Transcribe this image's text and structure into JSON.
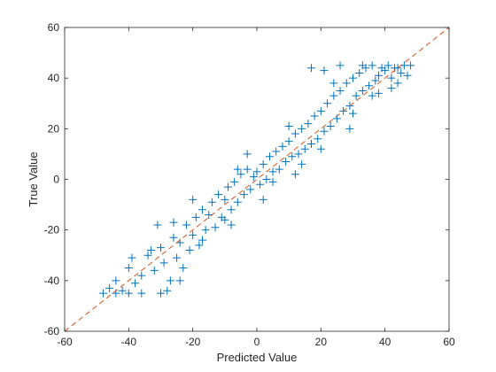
{
  "colors": {
    "marker": "#0072BD",
    "reference_line": "#D95319",
    "axis": "#262626"
  },
  "chart_data": {
    "type": "scatter",
    "title": "",
    "xlabel": "Predicted Value",
    "ylabel": "True Value",
    "xlim": [
      -60,
      60
    ],
    "ylim": [
      -60,
      60
    ],
    "xticks": [
      -60,
      -40,
      -20,
      0,
      20,
      40,
      60
    ],
    "yticks": [
      -60,
      -40,
      -20,
      0,
      20,
      40,
      60
    ],
    "xtick_labels": [
      "-60",
      "-40",
      "-20",
      "0",
      "20",
      "40",
      "60"
    ],
    "ytick_labels": [
      "-60",
      "-40",
      "-20",
      "0",
      "20",
      "40",
      "60"
    ],
    "grid": false,
    "marker": "+",
    "reference_line": {
      "style": "dashed",
      "x": [
        -60,
        60
      ],
      "y": [
        -60,
        60
      ]
    },
    "series": [
      {
        "name": "",
        "points": [
          [
            -48,
            -45
          ],
          [
            -46,
            -43
          ],
          [
            -44,
            -40
          ],
          [
            -42,
            -44
          ],
          [
            -40,
            -35
          ],
          [
            -38,
            -41
          ],
          [
            -36,
            -38
          ],
          [
            -34,
            -30
          ],
          [
            -32,
            -36
          ],
          [
            -30,
            -27
          ],
          [
            -29,
            -33
          ],
          [
            -28,
            -44
          ],
          [
            -27,
            -40
          ],
          [
            -26,
            -23
          ],
          [
            -25,
            -31
          ],
          [
            -24,
            -25
          ],
          [
            -23,
            -35
          ],
          [
            -22,
            -18
          ],
          [
            -21,
            -28
          ],
          [
            -20,
            -22
          ],
          [
            -19,
            -15
          ],
          [
            -18,
            -26
          ],
          [
            -17,
            -12
          ],
          [
            -16,
            -20
          ],
          [
            -15,
            -14
          ],
          [
            -14,
            -9
          ],
          [
            -13,
            -19
          ],
          [
            -12,
            -6
          ],
          [
            -11,
            -15
          ],
          [
            -10,
            -8
          ],
          [
            -9,
            -3
          ],
          [
            -8,
            -12
          ],
          [
            -7,
            -1
          ],
          [
            -6,
            -9
          ],
          [
            -5,
            2
          ],
          [
            -4,
            -6
          ],
          [
            -3,
            4
          ],
          [
            -2,
            -4
          ],
          [
            -1,
            1
          ],
          [
            0,
            3
          ],
          [
            1,
            -2
          ],
          [
            2,
            6
          ],
          [
            3,
            0
          ],
          [
            4,
            9
          ],
          [
            5,
            3
          ],
          [
            6,
            11
          ],
          [
            7,
            4
          ],
          [
            8,
            13
          ],
          [
            9,
            7
          ],
          [
            10,
            15
          ],
          [
            11,
            9
          ],
          [
            12,
            18
          ],
          [
            13,
            10
          ],
          [
            14,
            20
          ],
          [
            15,
            12
          ],
          [
            16,
            22
          ],
          [
            17,
            14
          ],
          [
            18,
            25
          ],
          [
            19,
            16
          ],
          [
            20,
            27
          ],
          [
            21,
            19
          ],
          [
            22,
            30
          ],
          [
            23,
            21
          ],
          [
            24,
            33
          ],
          [
            25,
            24
          ],
          [
            26,
            35
          ],
          [
            27,
            27
          ],
          [
            28,
            38
          ],
          [
            29,
            29
          ],
          [
            30,
            40
          ],
          [
            31,
            33
          ],
          [
            32,
            42
          ],
          [
            33,
            35
          ],
          [
            34,
            44
          ],
          [
            35,
            37
          ],
          [
            36,
            45
          ],
          [
            37,
            39
          ],
          [
            38,
            41
          ],
          [
            39,
            44
          ],
          [
            40,
            43
          ],
          [
            41,
            45
          ],
          [
            42,
            40
          ],
          [
            43,
            44
          ],
          [
            44,
            38
          ],
          [
            45,
            42
          ],
          [
            46,
            45
          ],
          [
            47,
            41
          ],
          [
            48,
            45
          ],
          [
            -44,
            -45
          ],
          [
            -40,
            -45
          ],
          [
            -36,
            -45
          ],
          [
            -30,
            -45
          ],
          [
            -24,
            -40
          ],
          [
            -33,
            -28
          ],
          [
            -26,
            -17
          ],
          [
            -17,
            -24
          ],
          [
            -10,
            -16
          ],
          [
            -6,
            4
          ],
          [
            5,
            -1
          ],
          [
            12,
            2
          ],
          [
            20,
            12
          ],
          [
            24,
            38
          ],
          [
            30,
            26
          ],
          [
            36,
            33
          ],
          [
            21,
            43
          ],
          [
            17,
            44
          ],
          [
            26,
            45
          ],
          [
            10,
            21
          ],
          [
            -3,
            10
          ],
          [
            -20,
            -8
          ],
          [
            -31,
            -18
          ],
          [
            -39,
            -31
          ],
          [
            33,
            45
          ],
          [
            38,
            34
          ],
          [
            42,
            36
          ],
          [
            44,
            44
          ],
          [
            29,
            20
          ],
          [
            14,
            6
          ],
          [
            2,
            -8
          ],
          [
            -8,
            -18
          ]
        ]
      }
    ]
  }
}
